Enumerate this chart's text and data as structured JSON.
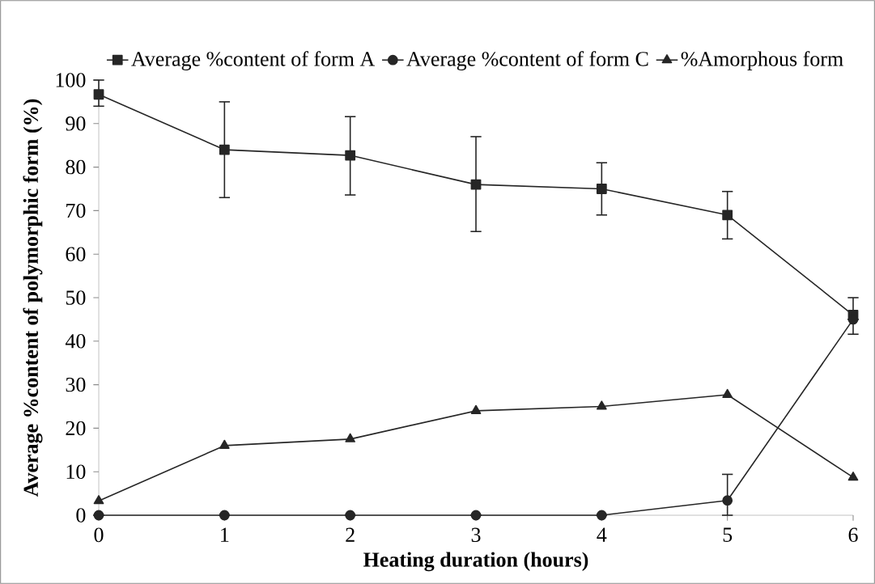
{
  "chart_data": {
    "type": "line",
    "xlabel": "Heating duration (hours)",
    "ylabel": "Average %content of polymorphic form (%)",
    "x": [
      0,
      1,
      2,
      3,
      4,
      5,
      6
    ],
    "series": [
      {
        "name": "Average %content of form A",
        "color": "#262626",
        "marker": "square",
        "values": [
          96.7,
          84,
          82.7,
          76,
          75,
          69,
          46
        ],
        "errors": [
          [
            94,
            100
          ],
          [
            73,
            95
          ],
          [
            73.6,
            91.6
          ],
          [
            65.2,
            87
          ],
          [
            69,
            81
          ],
          [
            63.5,
            74.4
          ],
          [
            41.6,
            50
          ]
        ]
      },
      {
        "name": "Average %content of form C",
        "color": "#262626",
        "marker": "circle",
        "values": [
          0,
          0,
          0,
          0,
          0,
          3.4,
          45
        ],
        "errors": [
          null,
          null,
          null,
          null,
          null,
          [
            0,
            9.4
          ],
          null
        ]
      },
      {
        "name": "%Amorphous form",
        "color": "#262626",
        "marker": "triangle",
        "values": [
          3.3,
          16,
          17.5,
          24,
          25,
          27.7,
          8.7
        ]
      }
    ],
    "xlim": [
      0,
      6
    ],
    "xticks": [
      0,
      1,
      2,
      3,
      4,
      5,
      6
    ],
    "ylim": [
      0,
      100
    ],
    "yticks": [
      0,
      10,
      20,
      30,
      40,
      50,
      60,
      70,
      80,
      90,
      100
    ],
    "grid": false,
    "legend": "top"
  }
}
